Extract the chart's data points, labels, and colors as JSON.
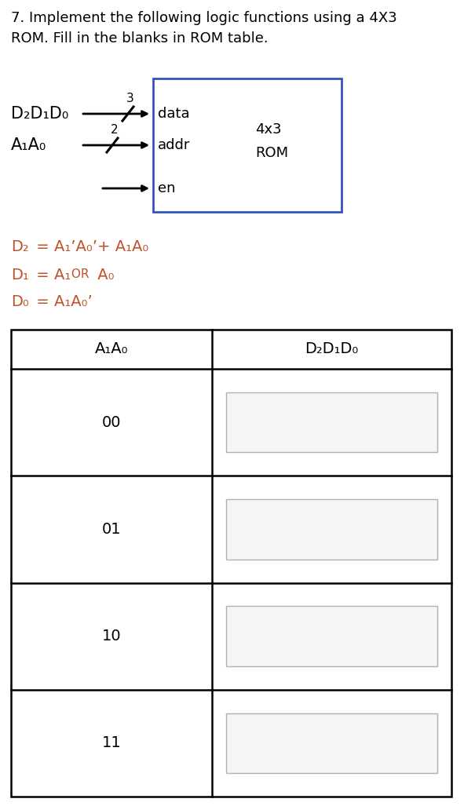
{
  "title_line1": "7. Implement the following logic functions using a 4X3",
  "title_line2": "ROM. Fill in the blanks in ROM table.",
  "bg_color": "#ffffff",
  "text_color": "#000000",
  "orange_color": "#c0522a",
  "rom_box_color": "#3355bb",
  "table_rows": [
    "00",
    "01",
    "10",
    "11"
  ],
  "col1_header": "A₁A₀",
  "col2_header": "D₂D₁D₀",
  "d2_lhs": "D₂",
  "d2_rhs": " = A₁’A₀’+ A₁A₀",
  "d1_lhs": "D₁",
  "d1_rhs1": " = A₁",
  "d1_or": " OR ",
  "d1_rhs2": " A₀",
  "d0_lhs": "D₀",
  "d0_rhs": " = A₁A₀’",
  "rom_label_4x3": "4x3",
  "rom_label_rom": "ROM",
  "label_data": "data",
  "label_addr": "addr",
  "label_en": "en",
  "label_d2d1d0": "D₂D₁D₀",
  "label_a1a0": "A₁A₀",
  "slash_label_3": "3",
  "slash_label_2": "2"
}
